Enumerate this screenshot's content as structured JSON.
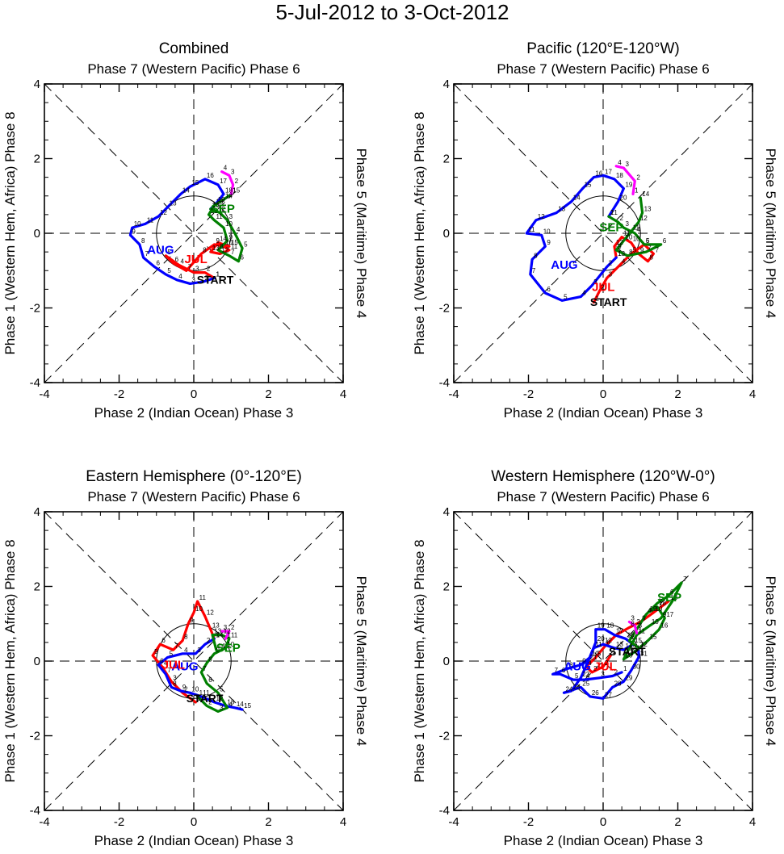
{
  "title": "5-Jul-2012 to 3-Oct-2012",
  "axis": {
    "range": [
      -4,
      4
    ],
    "ticks": [
      -4,
      -2,
      0,
      2,
      4
    ],
    "bottom_label": "Phase 2 (Indian Ocean) Phase 3",
    "top_label": "Phase 7 (Western Pacific) Phase 6",
    "left_label": "Phase 1 (Western Hem, Africa) Phase 8",
    "right_label": "Phase 5 (Maritime) Phase 4"
  },
  "month_colors": {
    "JUL": "#ff0000",
    "AUG": "#0000ff",
    "SEP": "#008000",
    "OCT": "#ff00ff"
  },
  "start_label": "START",
  "chart_data": [
    {
      "type": "line",
      "title": "Combined",
      "xlim": [
        -4,
        4
      ],
      "ylim": [
        -4,
        4
      ],
      "labels": [
        {
          "text": "AUG",
          "color": "blue",
          "x": -1.25,
          "y": -0.55
        },
        {
          "text": "JUL",
          "color": "red",
          "x": -0.25,
          "y": -0.8
        },
        {
          "text": "SEP",
          "color": "green",
          "x": 0.45,
          "y": 0.55
        },
        {
          "text": "START",
          "color": "black",
          "x": 0.08,
          "y": -1.35
        }
      ],
      "series": [
        {
          "name": "JUL",
          "color": "#ff0000",
          "points": [
            [
              0.55,
              -1.2
            ],
            [
              0.3,
              -1.05
            ],
            [
              0,
              -1.05
            ],
            [
              -0.4,
              -0.85
            ],
            [
              -0.75,
              -0.6
            ],
            [
              -0.55,
              -0.8
            ],
            [
              -0.2,
              -1.0
            ],
            [
              0.2,
              -0.55
            ],
            [
              0.55,
              -0.3
            ],
            [
              0.8,
              -0.35
            ],
            [
              0.95,
              -0.45
            ],
            [
              0.7,
              -0.55
            ],
            [
              0.45,
              -0.5
            ],
            [
              0.65,
              -0.25
            ],
            [
              0.95,
              -0.35
            ]
          ]
        },
        {
          "name": "AUG",
          "color": "#0000ff",
          "points": [
            [
              0.55,
              -1.2
            ],
            [
              0.25,
              -1.3
            ],
            [
              -0.1,
              -1.35
            ],
            [
              -0.45,
              -1.25
            ],
            [
              -0.75,
              -1.1
            ],
            [
              -1.05,
              -0.9
            ],
            [
              -1.35,
              -0.65
            ],
            [
              -1.45,
              -0.3
            ],
            [
              -1.7,
              -0.05
            ],
            [
              -1.65,
              0.15
            ],
            [
              -1.3,
              0.25
            ],
            [
              -0.95,
              0.45
            ],
            [
              -0.7,
              0.7
            ],
            [
              -0.35,
              1.05
            ],
            [
              -0.1,
              1.25
            ],
            [
              0.3,
              1.45
            ],
            [
              0.65,
              1.3
            ],
            [
              0.8,
              1.05
            ],
            [
              0.6,
              0.8
            ],
            [
              0.45,
              0.65
            ]
          ]
        },
        {
          "name": "SEP",
          "color": "#008000",
          "points": [
            [
              0.45,
              0.65
            ],
            [
              0.7,
              0.55
            ],
            [
              0.9,
              0.35
            ],
            [
              1.1,
              0.0
            ],
            [
              1.3,
              -0.4
            ],
            [
              1.2,
              -0.75
            ],
            [
              0.95,
              -0.6
            ],
            [
              0.65,
              -0.45
            ],
            [
              0.9,
              -0.2
            ],
            [
              0.8,
              0.15
            ],
            [
              0.55,
              0.35
            ],
            [
              0.4,
              0.5
            ],
            [
              0.55,
              0.75
            ],
            [
              0.8,
              0.9
            ],
            [
              1.0,
              1.05
            ]
          ]
        },
        {
          "name": "OCT",
          "color": "#ff00ff",
          "points": [
            [
              1.0,
              1.05
            ],
            [
              1.05,
              1.3
            ],
            [
              0.95,
              1.55
            ],
            [
              0.75,
              1.65
            ]
          ]
        }
      ]
    },
    {
      "type": "line",
      "title": "Pacific (120°E-120°W)",
      "xlim": [
        -4,
        4
      ],
      "ylim": [
        -4,
        4
      ],
      "labels": [
        {
          "text": "AUG",
          "color": "blue",
          "x": -1.4,
          "y": -0.95
        },
        {
          "text": "JUL",
          "color": "red",
          "x": -0.3,
          "y": -1.55
        },
        {
          "text": "SEP",
          "color": "green",
          "x": -0.1,
          "y": 0.05
        },
        {
          "text": "START",
          "color": "black",
          "x": -0.35,
          "y": -1.95
        }
      ],
      "series": [
        {
          "name": "JUL",
          "color": "#ff0000",
          "points": [
            [
              -0.25,
              -1.85
            ],
            [
              -0.1,
              -1.55
            ],
            [
              0.1,
              -1.2
            ],
            [
              0.45,
              -0.85
            ],
            [
              0.75,
              -0.55
            ],
            [
              1.1,
              -0.3
            ],
            [
              1.35,
              -0.55
            ],
            [
              1.2,
              -0.75
            ],
            [
              0.95,
              -0.55
            ],
            [
              0.75,
              -0.25
            ],
            [
              0.5,
              -0.1
            ],
            [
              0.3,
              -0.35
            ],
            [
              0.35,
              -0.65
            ]
          ]
        },
        {
          "name": "AUG",
          "color": "#0000ff",
          "points": [
            [
              0.35,
              -0.65
            ],
            [
              0.1,
              -0.9
            ],
            [
              -0.3,
              -1.4
            ],
            [
              -0.6,
              -1.7
            ],
            [
              -1.1,
              -1.8
            ],
            [
              -1.55,
              -1.6
            ],
            [
              -1.95,
              -1.1
            ],
            [
              -1.9,
              -0.7
            ],
            [
              -1.55,
              -0.35
            ],
            [
              -1.65,
              -0.05
            ],
            [
              -2.05,
              0.0
            ],
            [
              -1.8,
              0.35
            ],
            [
              -1.25,
              0.55
            ],
            [
              -0.85,
              0.85
            ],
            [
              -0.55,
              1.2
            ],
            [
              -0.25,
              1.5
            ],
            [
              0.0,
              1.55
            ],
            [
              0.3,
              1.45
            ],
            [
              0.55,
              1.2
            ],
            [
              0.4,
              0.85
            ],
            [
              0.15,
              0.45
            ]
          ]
        },
        {
          "name": "SEP",
          "color": "#008000",
          "points": [
            [
              0.15,
              0.45
            ],
            [
              0.4,
              0.3
            ],
            [
              0.55,
              0.15
            ],
            [
              0.85,
              0.0
            ],
            [
              1.1,
              -0.3
            ],
            [
              1.55,
              -0.3
            ],
            [
              1.15,
              -0.5
            ],
            [
              0.65,
              -0.6
            ],
            [
              0.35,
              -0.45
            ],
            [
              0.55,
              -0.2
            ],
            [
              0.75,
              0.05
            ],
            [
              0.95,
              0.3
            ],
            [
              1.05,
              0.55
            ],
            [
              1.0,
              0.95
            ]
          ]
        },
        {
          "name": "OCT",
          "color": "#ff00ff",
          "points": [
            [
              0.8,
              1.05
            ],
            [
              0.85,
              1.4
            ],
            [
              0.55,
              1.75
            ],
            [
              0.35,
              1.8
            ]
          ]
        }
      ]
    },
    {
      "type": "line",
      "title": "Eastern Hemisphere (0°-120°E)",
      "xlim": [
        -4,
        4
      ],
      "ylim": [
        -4,
        4
      ],
      "labels": [
        {
          "text": "AUG",
          "color": "blue",
          "x": -0.6,
          "y": -0.25
        },
        {
          "text": "JUL",
          "color": "red",
          "x": -0.85,
          "y": -0.2
        },
        {
          "text": "SEP",
          "color": "green",
          "x": 0.6,
          "y": 0.25
        },
        {
          "text": "START",
          "color": "black",
          "x": -0.2,
          "y": -1.1
        }
      ],
      "series": [
        {
          "name": "JUL",
          "color": "#ff0000",
          "points": [
            [
              0.05,
              -1.1
            ],
            [
              -0.3,
              -0.85
            ],
            [
              -0.6,
              -0.55
            ],
            [
              -0.85,
              -0.15
            ],
            [
              -1.1,
              0.15
            ],
            [
              -0.9,
              0.45
            ],
            [
              -0.55,
              0.3
            ],
            [
              -0.3,
              0.55
            ],
            [
              -0.15,
              1.0
            ],
            [
              0.0,
              1.3
            ],
            [
              0.1,
              1.6
            ],
            [
              0.3,
              1.2
            ],
            [
              0.45,
              0.85
            ],
            [
              0.55,
              0.6
            ]
          ]
        },
        {
          "name": "AUG",
          "color": "#0000ff",
          "points": [
            [
              0.55,
              0.6
            ],
            [
              0.3,
              0.45
            ],
            [
              0.05,
              0.2
            ],
            [
              -0.3,
              0.2
            ],
            [
              -0.7,
              0.1
            ],
            [
              -0.95,
              -0.1
            ],
            [
              -0.75,
              -0.35
            ],
            [
              -0.6,
              -0.7
            ],
            [
              -0.35,
              -0.8
            ],
            [
              -0.1,
              -0.85
            ],
            [
              0.2,
              -0.95
            ],
            [
              0.55,
              -1.1
            ],
            [
              0.85,
              -1.2
            ],
            [
              1.1,
              -1.25
            ],
            [
              1.3,
              -1.3
            ]
          ]
        },
        {
          "name": "SEP",
          "color": "#008000",
          "points": [
            [
              0.1,
              -0.95
            ],
            [
              0.35,
              -1.2
            ],
            [
              0.65,
              -1.35
            ],
            [
              0.9,
              -1.25
            ],
            [
              0.65,
              -0.85
            ],
            [
              0.35,
              -0.6
            ],
            [
              0.2,
              -0.3
            ],
            [
              0.35,
              -0.05
            ],
            [
              0.55,
              0.2
            ],
            [
              0.85,
              0.35
            ],
            [
              0.95,
              0.6
            ],
            [
              0.75,
              0.7
            ],
            [
              0.5,
              0.7
            ],
            [
              0.6,
              0.3
            ]
          ]
        },
        {
          "name": "OCT",
          "color": "#ff00ff",
          "points": [
            [
              0.85,
              0.6
            ],
            [
              0.95,
              0.8
            ],
            [
              0.75,
              0.8
            ]
          ]
        }
      ]
    },
    {
      "type": "line",
      "title": "Western Hemisphere (120°W-0°)",
      "xlim": [
        -4,
        4
      ],
      "ylim": [
        -4,
        4
      ],
      "labels": [
        {
          "text": "AUG",
          "color": "blue",
          "x": -1.05,
          "y": -0.25
        },
        {
          "text": "JUL",
          "color": "red",
          "x": -0.25,
          "y": -0.25
        },
        {
          "text": "SEP",
          "color": "green",
          "x": 1.45,
          "y": 1.6
        },
        {
          "text": "START",
          "color": "black",
          "x": 0.15,
          "y": 0.15
        }
      ],
      "series": [
        {
          "name": "JUL",
          "color": "#ff0000",
          "points": [
            [
              0.2,
              0.15
            ],
            [
              0.0,
              -0.15
            ],
            [
              -0.3,
              -0.3
            ],
            [
              -0.45,
              -0.15
            ],
            [
              -0.2,
              0.1
            ],
            [
              0.05,
              0.4
            ],
            [
              0.35,
              0.7
            ],
            [
              0.7,
              0.9
            ],
            [
              1.0,
              1.05
            ],
            [
              1.35,
              1.3
            ],
            [
              1.75,
              1.6
            ]
          ]
        },
        {
          "name": "AUG",
          "color": "#0000ff",
          "points": [
            [
              0.5,
              -0.3
            ],
            [
              0.25,
              -0.4
            ],
            [
              -0.1,
              -0.45
            ],
            [
              -0.5,
              -0.5
            ],
            [
              -0.8,
              -0.5
            ],
            [
              -1.15,
              -0.35
            ],
            [
              -1.35,
              -0.35
            ],
            [
              -0.95,
              -0.2
            ],
            [
              -0.6,
              -0.1
            ],
            [
              -0.35,
              0.1
            ],
            [
              -0.25,
              0.35
            ],
            [
              0.0,
              0.45
            ],
            [
              0.3,
              0.35
            ],
            [
              0.55,
              0.3
            ],
            [
              0.8,
              0.45
            ],
            [
              0.6,
              0.6
            ],
            [
              0.3,
              0.7
            ],
            [
              0.05,
              0.85
            ],
            [
              -0.2,
              0.85
            ],
            [
              -0.2,
              0.5
            ],
            [
              -0.4,
              0.0
            ],
            [
              -0.6,
              -0.45
            ],
            [
              -0.85,
              -0.8
            ],
            [
              -1.05,
              -0.85
            ],
            [
              -0.6,
              -0.7
            ],
            [
              -0.35,
              -0.95
            ],
            [
              0.0,
              -1.0
            ],
            [
              0.25,
              -0.7
            ],
            [
              0.55,
              -0.55
            ],
            [
              0.75,
              -0.25
            ],
            [
              0.95,
              0.1
            ],
            [
              0.95,
              0.35
            ]
          ]
        },
        {
          "name": "SEP",
          "color": "#008000",
          "points": [
            [
              0.95,
              0.35
            ],
            [
              0.7,
              0.55
            ],
            [
              0.9,
              0.85
            ],
            [
              1.15,
              1.25
            ],
            [
              1.45,
              1.55
            ],
            [
              1.75,
              1.75
            ],
            [
              2.1,
              2.1
            ],
            [
              1.85,
              1.6
            ],
            [
              1.55,
              1.15
            ],
            [
              1.25,
              0.95
            ],
            [
              0.9,
              0.7
            ],
            [
              0.65,
              0.25
            ],
            [
              0.55,
              0.05
            ],
            [
              0.85,
              0.25
            ],
            [
              1.2,
              0.55
            ],
            [
              1.5,
              0.85
            ],
            [
              1.65,
              1.15
            ],
            [
              1.45,
              1.45
            ],
            [
              1.2,
              1.3
            ]
          ]
        },
        {
          "name": "OCT",
          "color": "#ff00ff",
          "points": [
            [
              0.9,
              0.75
            ],
            [
              0.85,
              0.95
            ],
            [
              0.7,
              1.05
            ]
          ]
        }
      ]
    }
  ]
}
